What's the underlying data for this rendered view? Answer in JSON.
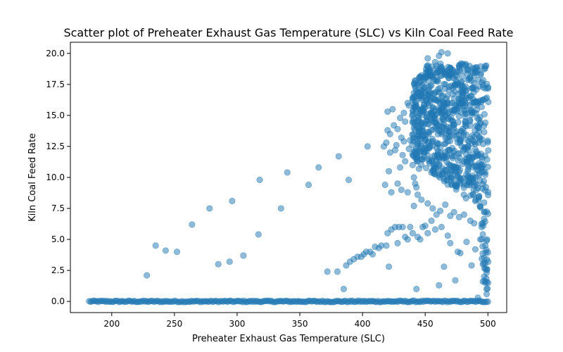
{
  "chart_data": {
    "type": "scatter",
    "title": "Scatter plot of Preheater Exhaust Gas Temperature (SLC) vs Kiln Coal Feed Rate",
    "xlabel": "Preheater Exhaust Gas Temperature (SLC)",
    "ylabel": "Kiln Coal Feed Rate",
    "xlim": [
      167,
      515
    ],
    "ylim": [
      -0.9,
      20.9
    ],
    "x_ticks": [
      200,
      250,
      300,
      350,
      400,
      450,
      500
    ],
    "x_tick_labels": [
      "200",
      "250",
      "300",
      "350",
      "400",
      "450",
      "500"
    ],
    "y_ticks": [
      0.0,
      2.5,
      5.0,
      7.5,
      10.0,
      12.5,
      15.0,
      17.5,
      20.0
    ],
    "y_tick_labels": [
      "0.0",
      "2.5",
      "5.0",
      "7.5",
      "10.0",
      "12.5",
      "15.0",
      "17.5",
      "20.0"
    ],
    "grid": false,
    "color": "#1f77b4",
    "alpha": 0.5,
    "points": [
      [
        228,
        2.1
      ],
      [
        235,
        4.5
      ],
      [
        243,
        4.1
      ],
      [
        252,
        4.0
      ],
      [
        264,
        6.2
      ],
      [
        278,
        7.5
      ],
      [
        285,
        3.0
      ],
      [
        294,
        3.2
      ],
      [
        296,
        8.1
      ],
      [
        305,
        3.7
      ],
      [
        317,
        5.4
      ],
      [
        318,
        9.8
      ],
      [
        335,
        7.5
      ],
      [
        340,
        10.4
      ],
      [
        357,
        9.4
      ],
      [
        365,
        10.8
      ],
      [
        372,
        2.4
      ],
      [
        380,
        2.4
      ],
      [
        381,
        11.7
      ],
      [
        385,
        1.0
      ],
      [
        387,
        2.9
      ],
      [
        389,
        9.8
      ],
      [
        390,
        3.2
      ],
      [
        393,
        3.4
      ],
      [
        396,
        3.6
      ],
      [
        399,
        3.6
      ],
      [
        401,
        3.8
      ],
      [
        403,
        4.0
      ],
      [
        404,
        12.5
      ],
      [
        406,
        4.0
      ],
      [
        408,
        3.8
      ],
      [
        410,
        4.4
      ],
      [
        413,
        4.3
      ],
      [
        415,
        4.5
      ],
      [
        418,
        9.4
      ],
      [
        419,
        4.5
      ],
      [
        420,
        5.5
      ],
      [
        421,
        2.8
      ],
      [
        423,
        5.8
      ],
      [
        426,
        6.0
      ],
      [
        428,
        4.7
      ],
      [
        429,
        6.0
      ],
      [
        431,
        9.0
      ],
      [
        432,
        6.0
      ],
      [
        434,
        5.2
      ],
      [
        436,
        5.0
      ],
      [
        438,
        6.0
      ],
      [
        440,
        5.5
      ],
      [
        441,
        7.7
      ],
      [
        443,
        1.0
      ],
      [
        444,
        5.2
      ],
      [
        446,
        5.0
      ],
      [
        448,
        6.0
      ],
      [
        450,
        6.1
      ],
      [
        452,
        5.5
      ],
      [
        455,
        6.5
      ],
      [
        458,
        5.8
      ],
      [
        461,
        1.3
      ],
      [
        463,
        6.0
      ],
      [
        465,
        2.8
      ],
      [
        468,
        5.3
      ],
      [
        470,
        4.7
      ],
      [
        474,
        1.7
      ],
      [
        476,
        4.0
      ],
      [
        478,
        3.9
      ],
      [
        483,
        4.8
      ],
      [
        487,
        2.9
      ],
      [
        490,
        4.2
      ],
      [
        492,
        0.3
      ],
      [
        494,
        5.0
      ],
      [
        498,
        4.5
      ],
      [
        420,
        15.3
      ],
      [
        424,
        15.5
      ],
      [
        430,
        14.8
      ],
      [
        433,
        15.2
      ],
      [
        436,
        16.0
      ],
      [
        437,
        15.8
      ],
      [
        422,
        13.5
      ],
      [
        426,
        12.2
      ],
      [
        432,
        11.8
      ],
      [
        421,
        10.5
      ],
      [
        430,
        10.8
      ],
      [
        434,
        11.3
      ],
      [
        423,
        8.8
      ],
      [
        428,
        9.5
      ],
      [
        436,
        8.8
      ],
      [
        442,
        9.5
      ],
      [
        444,
        8.6
      ],
      [
        447,
        8.2
      ],
      [
        452,
        7.9
      ],
      [
        456,
        7.5
      ],
      [
        459,
        7.0
      ],
      [
        462,
        7.3
      ],
      [
        466,
        7.8
      ],
      [
        470,
        6.9
      ],
      [
        473,
        7.2
      ],
      [
        477,
        6.8
      ],
      [
        481,
        7.0
      ],
      [
        486,
        6.5
      ],
      [
        489,
        6.3
      ],
      [
        495,
        6.0
      ],
      [
        496,
        3.0
      ],
      [
        497,
        2.0
      ],
      [
        498,
        1.5
      ],
      [
        499,
        1.0
      ],
      [
        499,
        0.6
      ],
      [
        497,
        3.5
      ],
      [
        420,
        13.8
      ],
      [
        425,
        14.2
      ],
      [
        428,
        13.9
      ],
      [
        431,
        13.2
      ],
      [
        434,
        14.5
      ],
      [
        438,
        13.0
      ],
      [
        417,
        12.5
      ],
      [
        419,
        12.8
      ],
      [
        422,
        12.0
      ],
      [
        427,
        12.6
      ],
      [
        433,
        12.9
      ],
      [
        437,
        12.3
      ],
      [
        440,
        11.0
      ],
      [
        441,
        10.0
      ],
      [
        443,
        9.2
      ],
      [
        445,
        10.7
      ],
      [
        447,
        11.5
      ],
      [
        449,
        12.0
      ],
      [
        463,
        20.1
      ],
      [
        468,
        20.0
      ],
      [
        452,
        19.6
      ],
      [
        458,
        19.3
      ],
      [
        461,
        19.8
      ]
    ],
    "dense_region": {
      "x_range": [
        440,
        500
      ],
      "y_range": [
        7.0,
        19.2
      ],
      "description_points_per_column": 14
    },
    "zero_band": {
      "x_range": [
        182,
        500
      ],
      "y_value": 0.0,
      "y_jitter": 0.12
    }
  }
}
